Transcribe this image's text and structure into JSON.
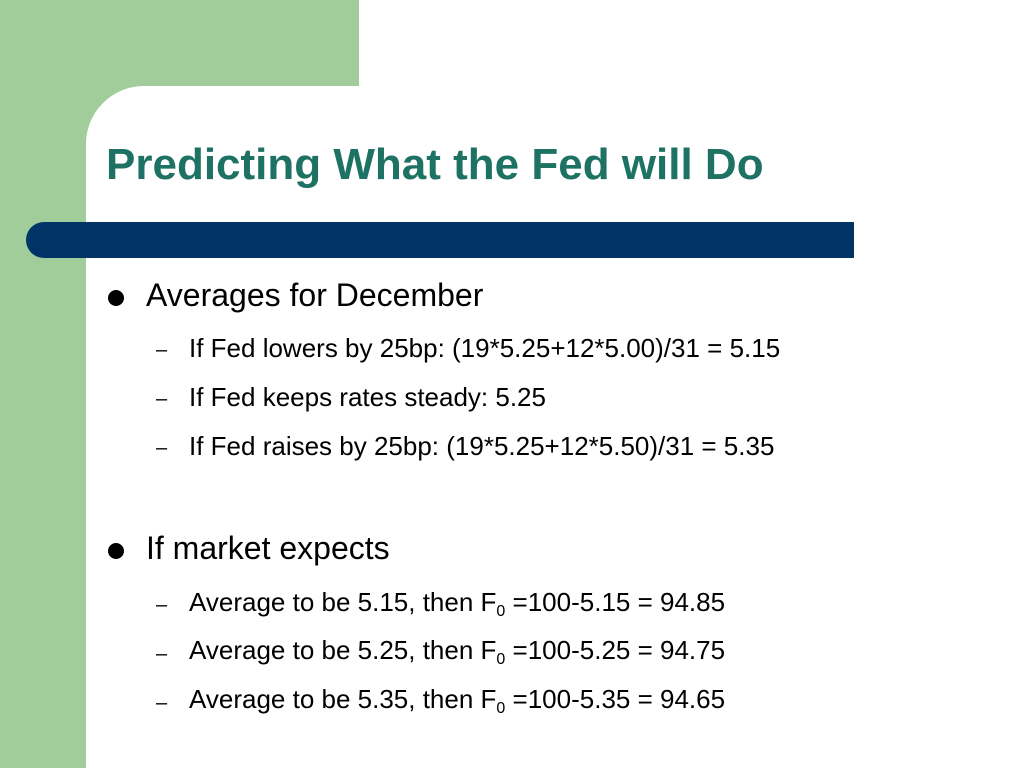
{
  "slide": {
    "title": "Predicting What the Fed will Do",
    "colors": {
      "title": "#1e7263",
      "green_band": "#a0cd9a",
      "title_bar": "#003366",
      "text": "#000000"
    },
    "sections": [
      {
        "heading": "Averages for December",
        "items": [
          "If Fed lowers by 25bp: (19*5.25+12*5.00)/31 = 5.15",
          "If Fed keeps rates steady: 5.25",
          "If Fed raises by 25bp: (19*5.25+12*5.50)/31 = 5.35"
        ]
      },
      {
        "heading": "If market expects",
        "items": [
          {
            "before": "Average to be 5.15, then F",
            "sub": "0",
            "after": " =100-5.15 = 94.85"
          },
          {
            "before": "Average to be 5.25, then F",
            "sub": "0",
            "after": " =100-5.25 = 94.75"
          },
          {
            "before": "Average to be 5.35, then F",
            "sub": "0",
            "after": " =100-5.35 = 94.65"
          }
        ]
      }
    ],
    "dash_glyph": "–"
  }
}
